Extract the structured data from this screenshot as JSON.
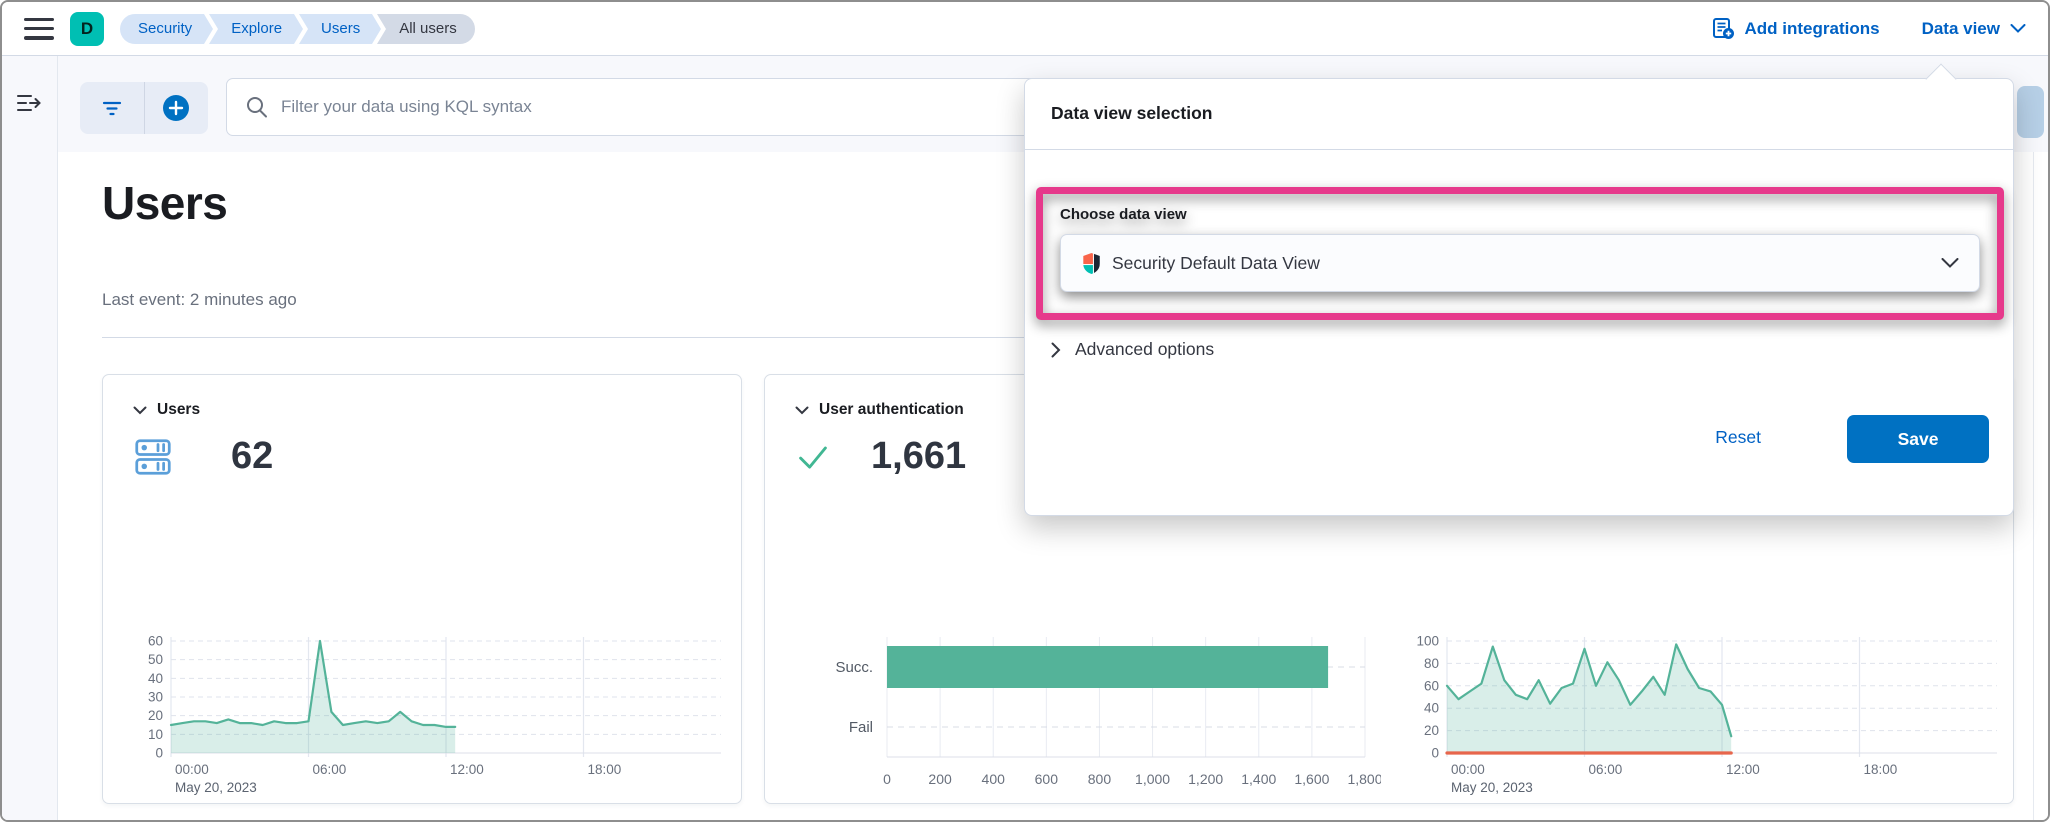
{
  "topbar": {
    "logo_letter": "D",
    "breadcrumbs": [
      {
        "label": "Security"
      },
      {
        "label": "Explore"
      },
      {
        "label": "Users"
      },
      {
        "label": "All users",
        "current": true
      }
    ],
    "add_integrations_label": "Add integrations",
    "data_view_label": "Data view"
  },
  "filter_bar": {
    "search_placeholder": "Filter your data using KQL syntax"
  },
  "page": {
    "title": "Users",
    "last_event": "Last event: 2 minutes ago"
  },
  "cards": {
    "users": {
      "title": "Users",
      "count": "62"
    },
    "auth": {
      "title": "User authentication",
      "count": "1,661"
    }
  },
  "popover": {
    "title": "Data view selection",
    "choose_label": "Choose data view",
    "selected_data_view": "Security Default Data View",
    "advanced_label": "Advanced options",
    "reset_label": "Reset",
    "save_label": "Save"
  },
  "colors": {
    "accent_blue": "#0061c4",
    "primary_button": "#0071c2",
    "logo_teal": "#00BFB3",
    "chart_green": "#54B399",
    "chart_orange": "#E7664C",
    "highlight_pink": "#E6398B",
    "breadcrumb_blue_bg": "#d6e4f7",
    "breadcrumb_gray_bg": "#d3dae6"
  },
  "chart_data": [
    {
      "type": "area",
      "name": "users-over-time",
      "x_axis": {
        "span_hours": 24,
        "tick_hours": [
          0,
          6,
          12,
          18
        ],
        "tick_labels": [
          "00:00",
          "06:00",
          "12:00",
          "18:00"
        ],
        "date_label": "May 20, 2023"
      },
      "y_axis": {
        "max": 60,
        "ticks": [
          0,
          10,
          20,
          30,
          40,
          50,
          60
        ]
      },
      "x_hours": [
        0,
        0.5,
        1,
        1.5,
        2,
        2.5,
        3,
        3.5,
        4,
        4.5,
        5,
        5.5,
        6,
        6.5,
        7,
        7.5,
        8,
        8.5,
        9,
        9.5,
        10,
        10.5,
        11,
        11.5,
        12,
        12.4
      ],
      "series": [
        {
          "name": "users",
          "color": "#54B399",
          "fill": true,
          "values": [
            15,
            16,
            17,
            17,
            16,
            18,
            16,
            16,
            15,
            17,
            16,
            16,
            17,
            60,
            22,
            15,
            16,
            17,
            16,
            17,
            22,
            17,
            15,
            15,
            14,
            14
          ]
        }
      ]
    },
    {
      "type": "bar",
      "name": "user-authentications",
      "orientation": "horizontal",
      "categories": [
        "Succ.",
        "Fail"
      ],
      "values": [
        1661,
        0
      ],
      "color": "#54B399",
      "x_axis": {
        "max": 1800,
        "tick_values": [
          0,
          200,
          400,
          600,
          800,
          1000,
          1200,
          1400,
          1600,
          1800
        ],
        "tick_labels": [
          "0",
          "200",
          "400",
          "600",
          "800",
          "1,000",
          "1,200",
          "1,400",
          "1,600",
          "1,800"
        ]
      }
    },
    {
      "type": "area",
      "name": "authentications-over-time",
      "x_axis": {
        "span_hours": 24,
        "tick_hours": [
          0,
          6,
          12,
          18
        ],
        "tick_labels": [
          "00:00",
          "06:00",
          "12:00",
          "18:00"
        ],
        "date_label": "May 20, 2023"
      },
      "y_axis": {
        "max": 100,
        "ticks": [
          0,
          20,
          40,
          60,
          80,
          100
        ]
      },
      "x_hours": [
        0,
        0.5,
        1,
        1.5,
        2,
        2.5,
        3,
        3.5,
        4,
        4.5,
        5,
        5.5,
        6,
        6.5,
        7,
        7.5,
        8,
        8.5,
        9,
        9.5,
        10,
        10.5,
        11,
        11.5,
        12,
        12.4
      ],
      "series": [
        {
          "name": "success",
          "color": "#54B399",
          "fill": true,
          "values": [
            60,
            48,
            55,
            62,
            95,
            65,
            52,
            48,
            65,
            44,
            58,
            62,
            93,
            60,
            81,
            65,
            43,
            55,
            68,
            52,
            97,
            75,
            58,
            55,
            43,
            15
          ]
        },
        {
          "name": "failure",
          "color": "#E7664C",
          "fill": false,
          "values": [
            0,
            0,
            0,
            0,
            0,
            0,
            0,
            0,
            0,
            0,
            0,
            0,
            0,
            0,
            0,
            0,
            0,
            0,
            0,
            0,
            0,
            0,
            0,
            0,
            0,
            0
          ]
        }
      ]
    }
  ]
}
